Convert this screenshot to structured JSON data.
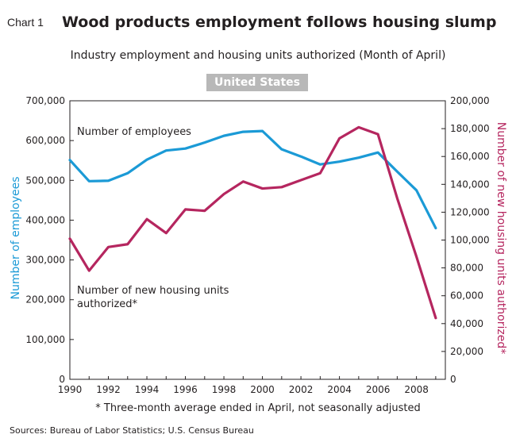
{
  "header": {
    "chart_label": "Chart 1",
    "title": "Wood products employment follows housing slump",
    "subtitle": "Industry employment and housing units authorized (Month of April)",
    "region": "United States"
  },
  "footer": {
    "footnote": "* Three-month average ended in April, not seasonally adjusted",
    "source": "Sources: Bureau of Labor Statistics; U.S. Census Bureau"
  },
  "chart_data": {
    "type": "line",
    "title": "Wood products employment follows housing slump",
    "subtitle": "Industry employment and housing units authorized (Month of April)",
    "x": [
      1990,
      1991,
      1992,
      1993,
      1994,
      1995,
      1996,
      1997,
      1998,
      1999,
      2000,
      2001,
      2002,
      2003,
      2004,
      2005,
      2006,
      2007,
      2008,
      2009
    ],
    "xlim": [
      1990,
      2009.5
    ],
    "x_ticks": [
      1990,
      1992,
      1994,
      1996,
      1998,
      2000,
      2002,
      2004,
      2006,
      2008
    ],
    "x_tick_labels": [
      "1990",
      "1992",
      "1994",
      "1996",
      "1998",
      "2000",
      "2002",
      "2004",
      "2006",
      "2008"
    ],
    "ylabel_left": "Number of employees",
    "ylabel_right": "Number of new housing units authorized*",
    "ylim_left": [
      0,
      700000
    ],
    "ylim_right": [
      0,
      200000
    ],
    "y_left_ticks": [
      0,
      100000,
      200000,
      300000,
      400000,
      500000,
      600000,
      700000
    ],
    "y_left_tick_labels": [
      "0",
      "100,000",
      "200,000",
      "300,000",
      "400,000",
      "500,000",
      "600,000",
      "700,000"
    ],
    "y_right_ticks": [
      0,
      20000,
      40000,
      60000,
      80000,
      100000,
      120000,
      140000,
      160000,
      180000,
      200000
    ],
    "y_right_tick_labels": [
      "0",
      "20,000",
      "40,000",
      "60,000",
      "80,000",
      "100,000",
      "120,000",
      "140,000",
      "160,000",
      "180,000",
      "200,000"
    ],
    "grid": false,
    "series": [
      {
        "axis": "left",
        "color": "#1b9ad6",
        "label": "Number of employees",
        "values": [
          551000,
          498000,
          499000,
          518000,
          552000,
          575000,
          580000,
          595000,
          612000,
          622000,
          624000,
          578000,
          560000,
          540000,
          547000,
          557000,
          570000,
          522000,
          475000,
          380000
        ]
      },
      {
        "axis": "right",
        "color": "#b5265f",
        "label": "Number of new housing units\nauthorized*",
        "values": [
          101000,
          78000,
          95000,
          97000,
          115000,
          105000,
          122000,
          121000,
          133000,
          142000,
          137000,
          138000,
          143000,
          148000,
          173000,
          181000,
          176000,
          130000,
          88000,
          44000
        ]
      }
    ]
  }
}
